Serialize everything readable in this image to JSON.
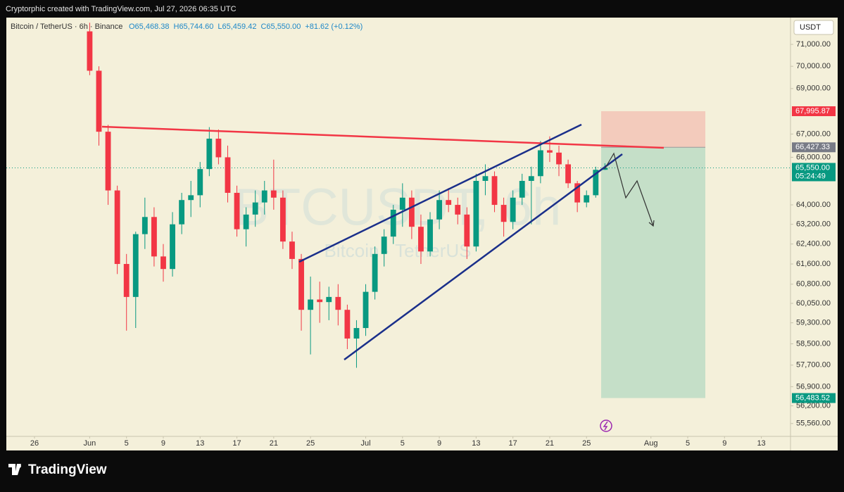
{
  "header": {
    "credit": "Cryptorphic created with TradingView.com, Jul 27, 2026 06:35 UTC"
  },
  "footer": {
    "brand": "TradingView"
  },
  "chart_data": {
    "type": "candlestick",
    "symbol": "Bitcoin / TetherUS · 6h · Binance",
    "ohlc_text": [
      "O65,468.38",
      "H65,744.60",
      "L65,459.42",
      "C65,550.00",
      "+81.62 (+0.12%)"
    ],
    "watermark": "BTCUSDT, 6h",
    "watermark_sub": "Bitcoin · TetherUS",
    "currency": "USDT",
    "countdown": "05:24:49",
    "log_scale": true,
    "grid": false,
    "up_color": "#089981",
    "down_color": "#f23645",
    "x": [
      6,
      7,
      8,
      9,
      10,
      11,
      12,
      13,
      14,
      15,
      16,
      17,
      18,
      19,
      20,
      21,
      22,
      23,
      24,
      25,
      26,
      27,
      28,
      29,
      30,
      31,
      32,
      33,
      34,
      35,
      36,
      37,
      38,
      39,
      40,
      41,
      42,
      43,
      44,
      45,
      46,
      47,
      48,
      49,
      50,
      51,
      52,
      53,
      54,
      55,
      56,
      57,
      58,
      59,
      60,
      61,
      62
    ],
    "series": [
      {
        "name": "Open",
        "values": [
          71600,
          69800,
          67100,
          64600,
          61600,
          60300,
          62800,
          63500,
          61900,
          61400,
          63200,
          64200,
          64400,
          65500,
          66800,
          66000,
          64500,
          63000,
          63600,
          64100,
          64600,
          64300,
          62500,
          61800,
          59800,
          60200,
          60100,
          60300,
          59800,
          58700,
          59100,
          60500,
          62000,
          62700,
          63800,
          64300,
          63100,
          62100,
          63400,
          64200,
          64000,
          63600,
          62300,
          65000,
          65200,
          64000,
          63300,
          64300,
          65000,
          65200,
          66300,
          66200,
          65700,
          64900,
          64100,
          64400,
          65468.38
        ]
      },
      {
        "name": "High",
        "values": [
          72000,
          70000,
          67400,
          64800,
          62000,
          62900,
          64300,
          63900,
          62400,
          63700,
          64500,
          65000,
          65800,
          67300,
          67200,
          66500,
          64800,
          63900,
          64600,
          65000,
          65900,
          64600,
          62900,
          62000,
          61100,
          60900,
          60700,
          60800,
          60000,
          59400,
          60800,
          62300,
          63000,
          64000,
          64900,
          64600,
          63600,
          63700,
          64600,
          64700,
          64300,
          63900,
          65300,
          65700,
          65400,
          64300,
          64600,
          65300,
          65600,
          66700,
          66900,
          66500,
          65900,
          65000,
          64600,
          65600,
          65744.6
        ]
      },
      {
        "name": "Low",
        "values": [
          69600,
          66500,
          64000,
          61200,
          59000,
          59100,
          62200,
          61500,
          60900,
          61100,
          62800,
          63500,
          63900,
          65200,
          65700,
          64100,
          62700,
          62300,
          63100,
          63600,
          63800,
          62200,
          61400,
          59000,
          58100,
          59300,
          59400,
          59200,
          58300,
          57600,
          58800,
          60200,
          61500,
          62400,
          63100,
          62600,
          61600,
          61900,
          63000,
          63700,
          63200,
          61800,
          62100,
          64400,
          63700,
          62700,
          63000,
          64000,
          63200,
          64900,
          65800,
          65200,
          64700,
          63700,
          63900,
          64300,
          65459.42
        ]
      },
      {
        "name": "Close",
        "values": [
          69800,
          67100,
          64600,
          61600,
          60300,
          62800,
          63500,
          61900,
          61400,
          63200,
          64200,
          64400,
          65500,
          66800,
          66000,
          64500,
          63000,
          63600,
          64100,
          64600,
          64300,
          62500,
          61800,
          59800,
          60200,
          60100,
          60300,
          59800,
          58700,
          59100,
          60500,
          62000,
          62700,
          63800,
          64300,
          63100,
          62100,
          63400,
          64200,
          64000,
          63600,
          62300,
          65000,
          65200,
          64000,
          63300,
          64300,
          65000,
          65200,
          66300,
          66200,
          65700,
          64900,
          64100,
          64400,
          65468.38,
          65550
        ]
      }
    ],
    "xlim": [
      -3.06,
      82.17
    ],
    "xticks": [
      {
        "value": 0,
        "label": "26"
      },
      {
        "value": 6,
        "label": "Jun"
      },
      {
        "value": 10,
        "label": "5"
      },
      {
        "value": 14,
        "label": "9"
      },
      {
        "value": 18,
        "label": "13"
      },
      {
        "value": 22,
        "label": "17"
      },
      {
        "value": 26,
        "label": "21"
      },
      {
        "value": 30,
        "label": "25"
      },
      {
        "value": 36,
        "label": "Jul"
      },
      {
        "value": 40,
        "label": "5"
      },
      {
        "value": 44,
        "label": "9"
      },
      {
        "value": 48,
        "label": "13"
      },
      {
        "value": 52,
        "label": "17"
      },
      {
        "value": 56,
        "label": "21"
      },
      {
        "value": 60,
        "label": "25"
      },
      {
        "value": 67,
        "label": "Aug"
      },
      {
        "value": 71,
        "label": "5"
      },
      {
        "value": 75,
        "label": "9"
      },
      {
        "value": 79,
        "label": "13"
      }
    ],
    "ylim": [
      55100,
      72240
    ],
    "yticks": [
      {
        "value": 71000,
        "label": "71,000.00"
      },
      {
        "value": 70000,
        "label": "70,000.00"
      },
      {
        "value": 69000,
        "label": "69,000.00"
      },
      {
        "value": 67000,
        "label": "67,000.00"
      },
      {
        "value": 66000,
        "label": "66,000.00"
      },
      {
        "value": 64000,
        "label": "64,000.00"
      },
      {
        "value": 63200,
        "label": "63,200.00"
      },
      {
        "value": 62400,
        "label": "62,400.00"
      },
      {
        "value": 61600,
        "label": "61,600.00"
      },
      {
        "value": 60800,
        "label": "60,800.00"
      },
      {
        "value": 60050,
        "label": "60,050.00"
      },
      {
        "value": 59300,
        "label": "59,300.00"
      },
      {
        "value": 58500,
        "label": "58,500.00"
      },
      {
        "value": 57700,
        "label": "57,700.00"
      },
      {
        "value": 56900,
        "label": "56,900.00"
      },
      {
        "value": 56200,
        "label": "56,200.00"
      },
      {
        "value": 55560,
        "label": "55,560.00"
      }
    ],
    "price_labels": [
      {
        "value": 67995.87,
        "label": "67,995.87",
        "color": "#f23645"
      },
      {
        "value": 66427.33,
        "label": "66,427.33",
        "color": "#787b86"
      },
      {
        "value": 65550,
        "label": "65,550.00",
        "color": "#089981"
      },
      {
        "value": 56483.52,
        "label": "56,483.52",
        "color": "#089981"
      }
    ]
  }
}
